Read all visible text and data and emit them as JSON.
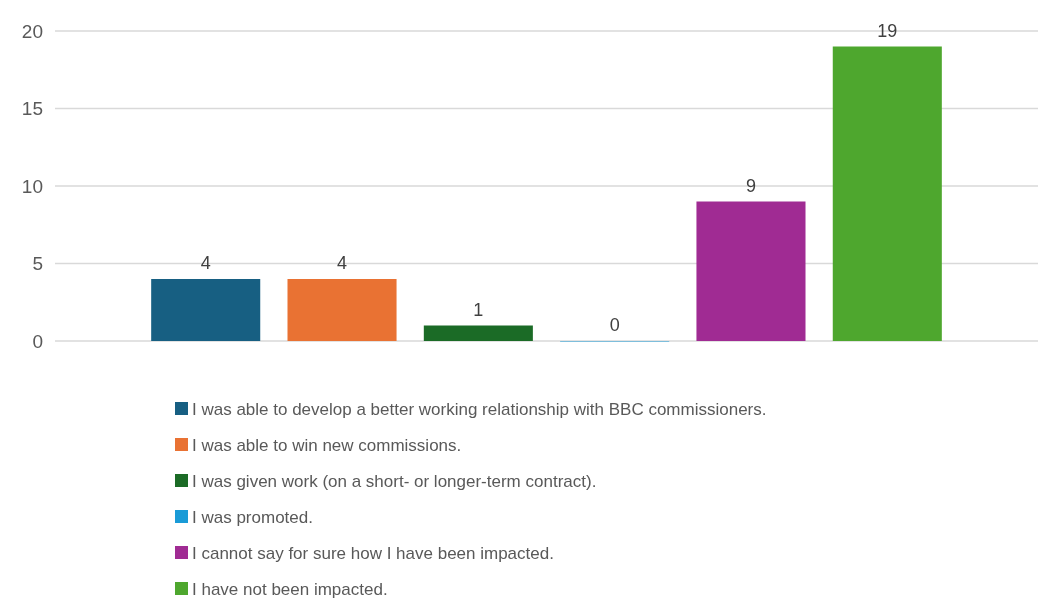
{
  "chart_data": {
    "type": "bar",
    "categories": [
      null
    ],
    "series": [
      {
        "name": "I was able to develop a better working relationship with BBC commissioners.",
        "color": "#175f82",
        "values": [
          4
        ]
      },
      {
        "name": "I was able to win new commissions.",
        "color": "#e97233",
        "values": [
          4
        ]
      },
      {
        "name": "I was given work (on a short- or longer-term contract).",
        "color": "#1b6b26",
        "values": [
          1
        ]
      },
      {
        "name": "I was promoted.",
        "color": "#1a9bd7",
        "values": [
          0
        ]
      },
      {
        "name": "I cannot say for sure how I have been impacted.",
        "color": "#a02b93",
        "values": [
          9
        ]
      },
      {
        "name": "I have not been impacted.",
        "color": "#4ea72e",
        "values": [
          19
        ]
      }
    ],
    "ylim": [
      0,
      20
    ],
    "yticks": [
      0,
      5,
      10,
      15,
      20
    ],
    "grid": "y",
    "legend": "bottom",
    "data_labels": true
  }
}
